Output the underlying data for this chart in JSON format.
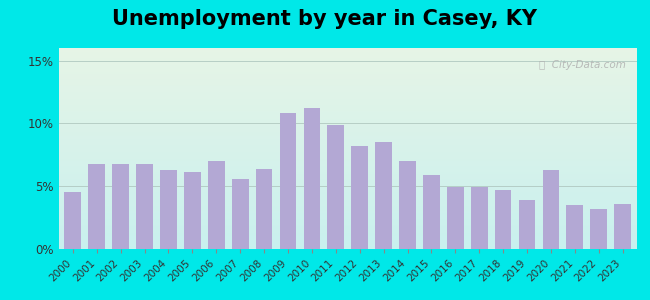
{
  "title": "Unemployment by year in Casey, KY",
  "years": [
    2000,
    2001,
    2002,
    2003,
    2004,
    2005,
    2006,
    2007,
    2008,
    2009,
    2010,
    2011,
    2012,
    2013,
    2014,
    2015,
    2016,
    2017,
    2018,
    2019,
    2020,
    2021,
    2022,
    2023
  ],
  "values": [
    4.5,
    6.8,
    6.8,
    6.8,
    6.3,
    6.1,
    7.0,
    5.6,
    6.4,
    10.8,
    11.2,
    9.9,
    8.2,
    8.5,
    7.0,
    5.9,
    4.9,
    4.9,
    4.7,
    3.9,
    6.3,
    3.5,
    3.2,
    3.6
  ],
  "bar_color": "#b3a8d4",
  "yticks": [
    0,
    5,
    10,
    15
  ],
  "ytick_labels": [
    "0%",
    "5%",
    "10%",
    "15%"
  ],
  "ylim": [
    0,
    16
  ],
  "bg_outer": "#00e8e8",
  "bg_plot_top": "#e6f4e6",
  "bg_plot_bottom": "#c8f0ee",
  "title_fontsize": 15,
  "tick_fontsize": 7.5,
  "watermark_text": "ⓘ  City-Data.com",
  "grid_color": "#b0c8c0",
  "grid_linewidth": 0.6
}
